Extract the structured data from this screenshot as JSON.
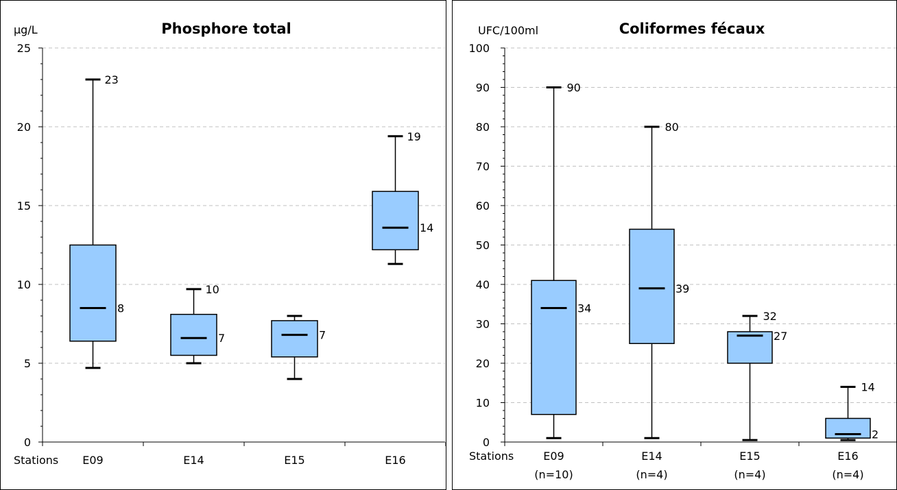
{
  "chart_data": [
    {
      "type": "box",
      "title": "Phosphore total",
      "ylabel": "µg/L",
      "xlabel": "Stations",
      "ylim": [
        0,
        25
      ],
      "ytick_step": 5,
      "grid": true,
      "categories": [
        "E09",
        "E14",
        "E15",
        "E16"
      ],
      "subcategories": [],
      "boxes": [
        {
          "station": "E09",
          "min": 4.7,
          "q1": 6.4,
          "median": 8.5,
          "q3": 12.5,
          "max": 23
        },
        {
          "station": "E14",
          "min": 5.0,
          "q1": 5.5,
          "median": 6.6,
          "q3": 8.1,
          "max": 9.7
        },
        {
          "station": "E15",
          "min": 4.0,
          "q1": 5.4,
          "median": 6.8,
          "q3": 7.7,
          "max": 8.0
        },
        {
          "station": "E16",
          "min": 11.3,
          "q1": 12.2,
          "median": 13.6,
          "q3": 15.9,
          "max": 19.4
        }
      ],
      "value_labels": [
        {
          "text": "23",
          "y": 23,
          "box": 0,
          "kind": "max"
        },
        {
          "text": "8",
          "y": 8.5,
          "box": 0,
          "kind": "median"
        },
        {
          "text": "10",
          "y": 9.7,
          "box": 1,
          "kind": "max"
        },
        {
          "text": "7",
          "y": 6.6,
          "box": 1,
          "kind": "median"
        },
        {
          "text": "7",
          "y": 6.8,
          "box": 2,
          "kind": "median"
        },
        {
          "text": "19",
          "y": 19.4,
          "box": 3,
          "kind": "max"
        },
        {
          "text": "14",
          "y": 13.6,
          "box": 3,
          "kind": "median"
        }
      ],
      "colors": {
        "box_fill": "#99ccff",
        "line": "#000000",
        "grid": "#c0c0c0"
      }
    },
    {
      "type": "box",
      "title": "Coliformes fécaux",
      "ylabel": "UFC/100ml",
      "xlabel": "Stations",
      "ylim": [
        0,
        100
      ],
      "ytick_step": 10,
      "grid": true,
      "categories": [
        "E09",
        "E14",
        "E15",
        "E16"
      ],
      "subcategories": [
        "(n=10)",
        "(n=4)",
        "(n=4)",
        "(n=4)"
      ],
      "boxes": [
        {
          "station": "E09",
          "min": 1,
          "q1": 7,
          "median": 34,
          "q3": 41,
          "max": 90
        },
        {
          "station": "E14",
          "min": 1,
          "q1": 25,
          "median": 39,
          "q3": 54,
          "max": 80
        },
        {
          "station": "E15",
          "min": 0.5,
          "q1": 20,
          "median": 27,
          "q3": 28,
          "max": 32
        },
        {
          "station": "E16",
          "min": 0.5,
          "q1": 1,
          "median": 2,
          "q3": 6,
          "max": 14
        }
      ],
      "value_labels": [
        {
          "text": "90",
          "y": 90,
          "box": 0,
          "kind": "max"
        },
        {
          "text": "34",
          "y": 34,
          "box": 0,
          "kind": "median"
        },
        {
          "text": "80",
          "y": 80,
          "box": 1,
          "kind": "max"
        },
        {
          "text": "39",
          "y": 39,
          "box": 1,
          "kind": "median"
        },
        {
          "text": "32",
          "y": 32,
          "box": 2,
          "kind": "max"
        },
        {
          "text": "27",
          "y": 27,
          "box": 2,
          "kind": "median"
        },
        {
          "text": "14",
          "y": 14,
          "box": 3,
          "kind": "max"
        },
        {
          "text": "2",
          "y": 2,
          "box": 3,
          "kind": "median"
        }
      ],
      "colors": {
        "box_fill": "#99ccff",
        "line": "#000000",
        "grid": "#c0c0c0"
      }
    }
  ]
}
